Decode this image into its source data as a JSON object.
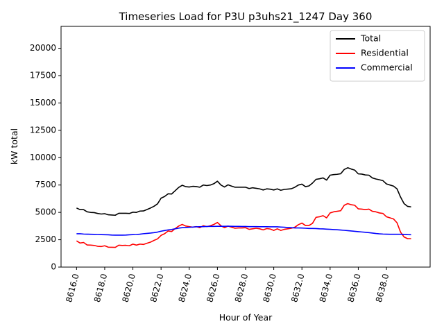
{
  "chart_data": {
    "type": "line",
    "title": "Timeseries Load for P3U p3uhs21_1247  Day 360",
    "xlabel": "Hour of Year",
    "ylabel": "kW total",
    "xlim": [
      8614.9,
      8641.1
    ],
    "ylim": [
      0,
      22000
    ],
    "x_ticks": [
      8616,
      8618,
      8620,
      8622,
      8624,
      8626,
      8628,
      8630,
      8632,
      8634,
      8636,
      8638
    ],
    "x_tick_labels": [
      "8616.0",
      "8618.0",
      "8620.0",
      "8622.0",
      "8624.0",
      "8626.0",
      "8628.0",
      "8630.0",
      "8632.0",
      "8634.0",
      "8636.0",
      "8638.0"
    ],
    "y_ticks": [
      0,
      2500,
      5000,
      7500,
      10000,
      12500,
      15000,
      17500,
      20000
    ],
    "y_tick_labels": [
      "0",
      "2500",
      "5000",
      "7500",
      "10000",
      "12500",
      "15000",
      "17500",
      "20000"
    ],
    "legend_position": "top-right",
    "x_start": 8616,
    "x_step": 0.25,
    "series": [
      {
        "name": "Total",
        "color": "#000000",
        "values": [
          5400,
          5250,
          5250,
          5050,
          5000,
          4980,
          4900,
          4850,
          4880,
          4780,
          4760,
          4740,
          4920,
          4920,
          4920,
          4900,
          5020,
          5000,
          5120,
          5130,
          5260,
          5400,
          5560,
          5780,
          6300,
          6450,
          6700,
          6680,
          6980,
          7280,
          7480,
          7350,
          7320,
          7380,
          7360,
          7300,
          7500,
          7450,
          7500,
          7620,
          7850,
          7500,
          7320,
          7520,
          7400,
          7300,
          7300,
          7300,
          7300,
          7180,
          7250,
          7200,
          7150,
          7050,
          7150,
          7120,
          7050,
          7150,
          7020,
          7100,
          7130,
          7160,
          7300,
          7500,
          7580,
          7350,
          7420,
          7680,
          8020,
          8070,
          8150,
          7950,
          8400,
          8450,
          8480,
          8530,
          8920,
          9080,
          8960,
          8860,
          8520,
          8500,
          8420,
          8400,
          8150,
          8050,
          7980,
          7900,
          7600,
          7500,
          7400,
          7150,
          6400,
          5800,
          5550,
          5500
        ]
      },
      {
        "name": "Residential",
        "color": "#ff0000",
        "values": [
          2400,
          2200,
          2250,
          2020,
          2010,
          1980,
          1900,
          1880,
          1950,
          1820,
          1810,
          1800,
          2000,
          1980,
          1990,
          1950,
          2100,
          2010,
          2100,
          2070,
          2180,
          2280,
          2440,
          2580,
          2900,
          3050,
          3300,
          3250,
          3520,
          3750,
          3900,
          3750,
          3700,
          3650,
          3700,
          3600,
          3780,
          3700,
          3780,
          3900,
          4080,
          3780,
          3600,
          3750,
          3650,
          3550,
          3580,
          3580,
          3600,
          3450,
          3500,
          3550,
          3500,
          3400,
          3520,
          3480,
          3350,
          3500,
          3350,
          3450,
          3500,
          3550,
          3650,
          3880,
          4020,
          3800,
          3800,
          4000,
          4550,
          4600,
          4700,
          4500,
          4950,
          5050,
          5100,
          5150,
          5650,
          5800,
          5700,
          5650,
          5320,
          5300,
          5250,
          5300,
          5100,
          5050,
          4950,
          4900,
          4600,
          4500,
          4400,
          4050,
          3200,
          2750,
          2600,
          2600
        ]
      },
      {
        "name": "Commercial",
        "color": "#0000ff",
        "values": [
          3050,
          3050,
          3020,
          3010,
          3000,
          2990,
          2980,
          2970,
          2960,
          2950,
          2930,
          2920,
          2920,
          2920,
          2930,
          2950,
          2970,
          2980,
          3010,
          3050,
          3080,
          3110,
          3150,
          3200,
          3280,
          3340,
          3400,
          3440,
          3500,
          3560,
          3600,
          3620,
          3640,
          3660,
          3680,
          3690,
          3700,
          3710,
          3720,
          3720,
          3730,
          3730,
          3730,
          3740,
          3730,
          3720,
          3720,
          3710,
          3710,
          3700,
          3700,
          3700,
          3690,
          3690,
          3690,
          3680,
          3680,
          3680,
          3660,
          3640,
          3620,
          3600,
          3580,
          3580,
          3570,
          3550,
          3530,
          3530,
          3520,
          3500,
          3490,
          3470,
          3450,
          3430,
          3410,
          3390,
          3360,
          3330,
          3300,
          3270,
          3240,
          3210,
          3180,
          3150,
          3110,
          3070,
          3040,
          3020,
          3010,
          3000,
          3000,
          3000,
          3000,
          2990,
          2970,
          2960
        ]
      }
    ]
  }
}
